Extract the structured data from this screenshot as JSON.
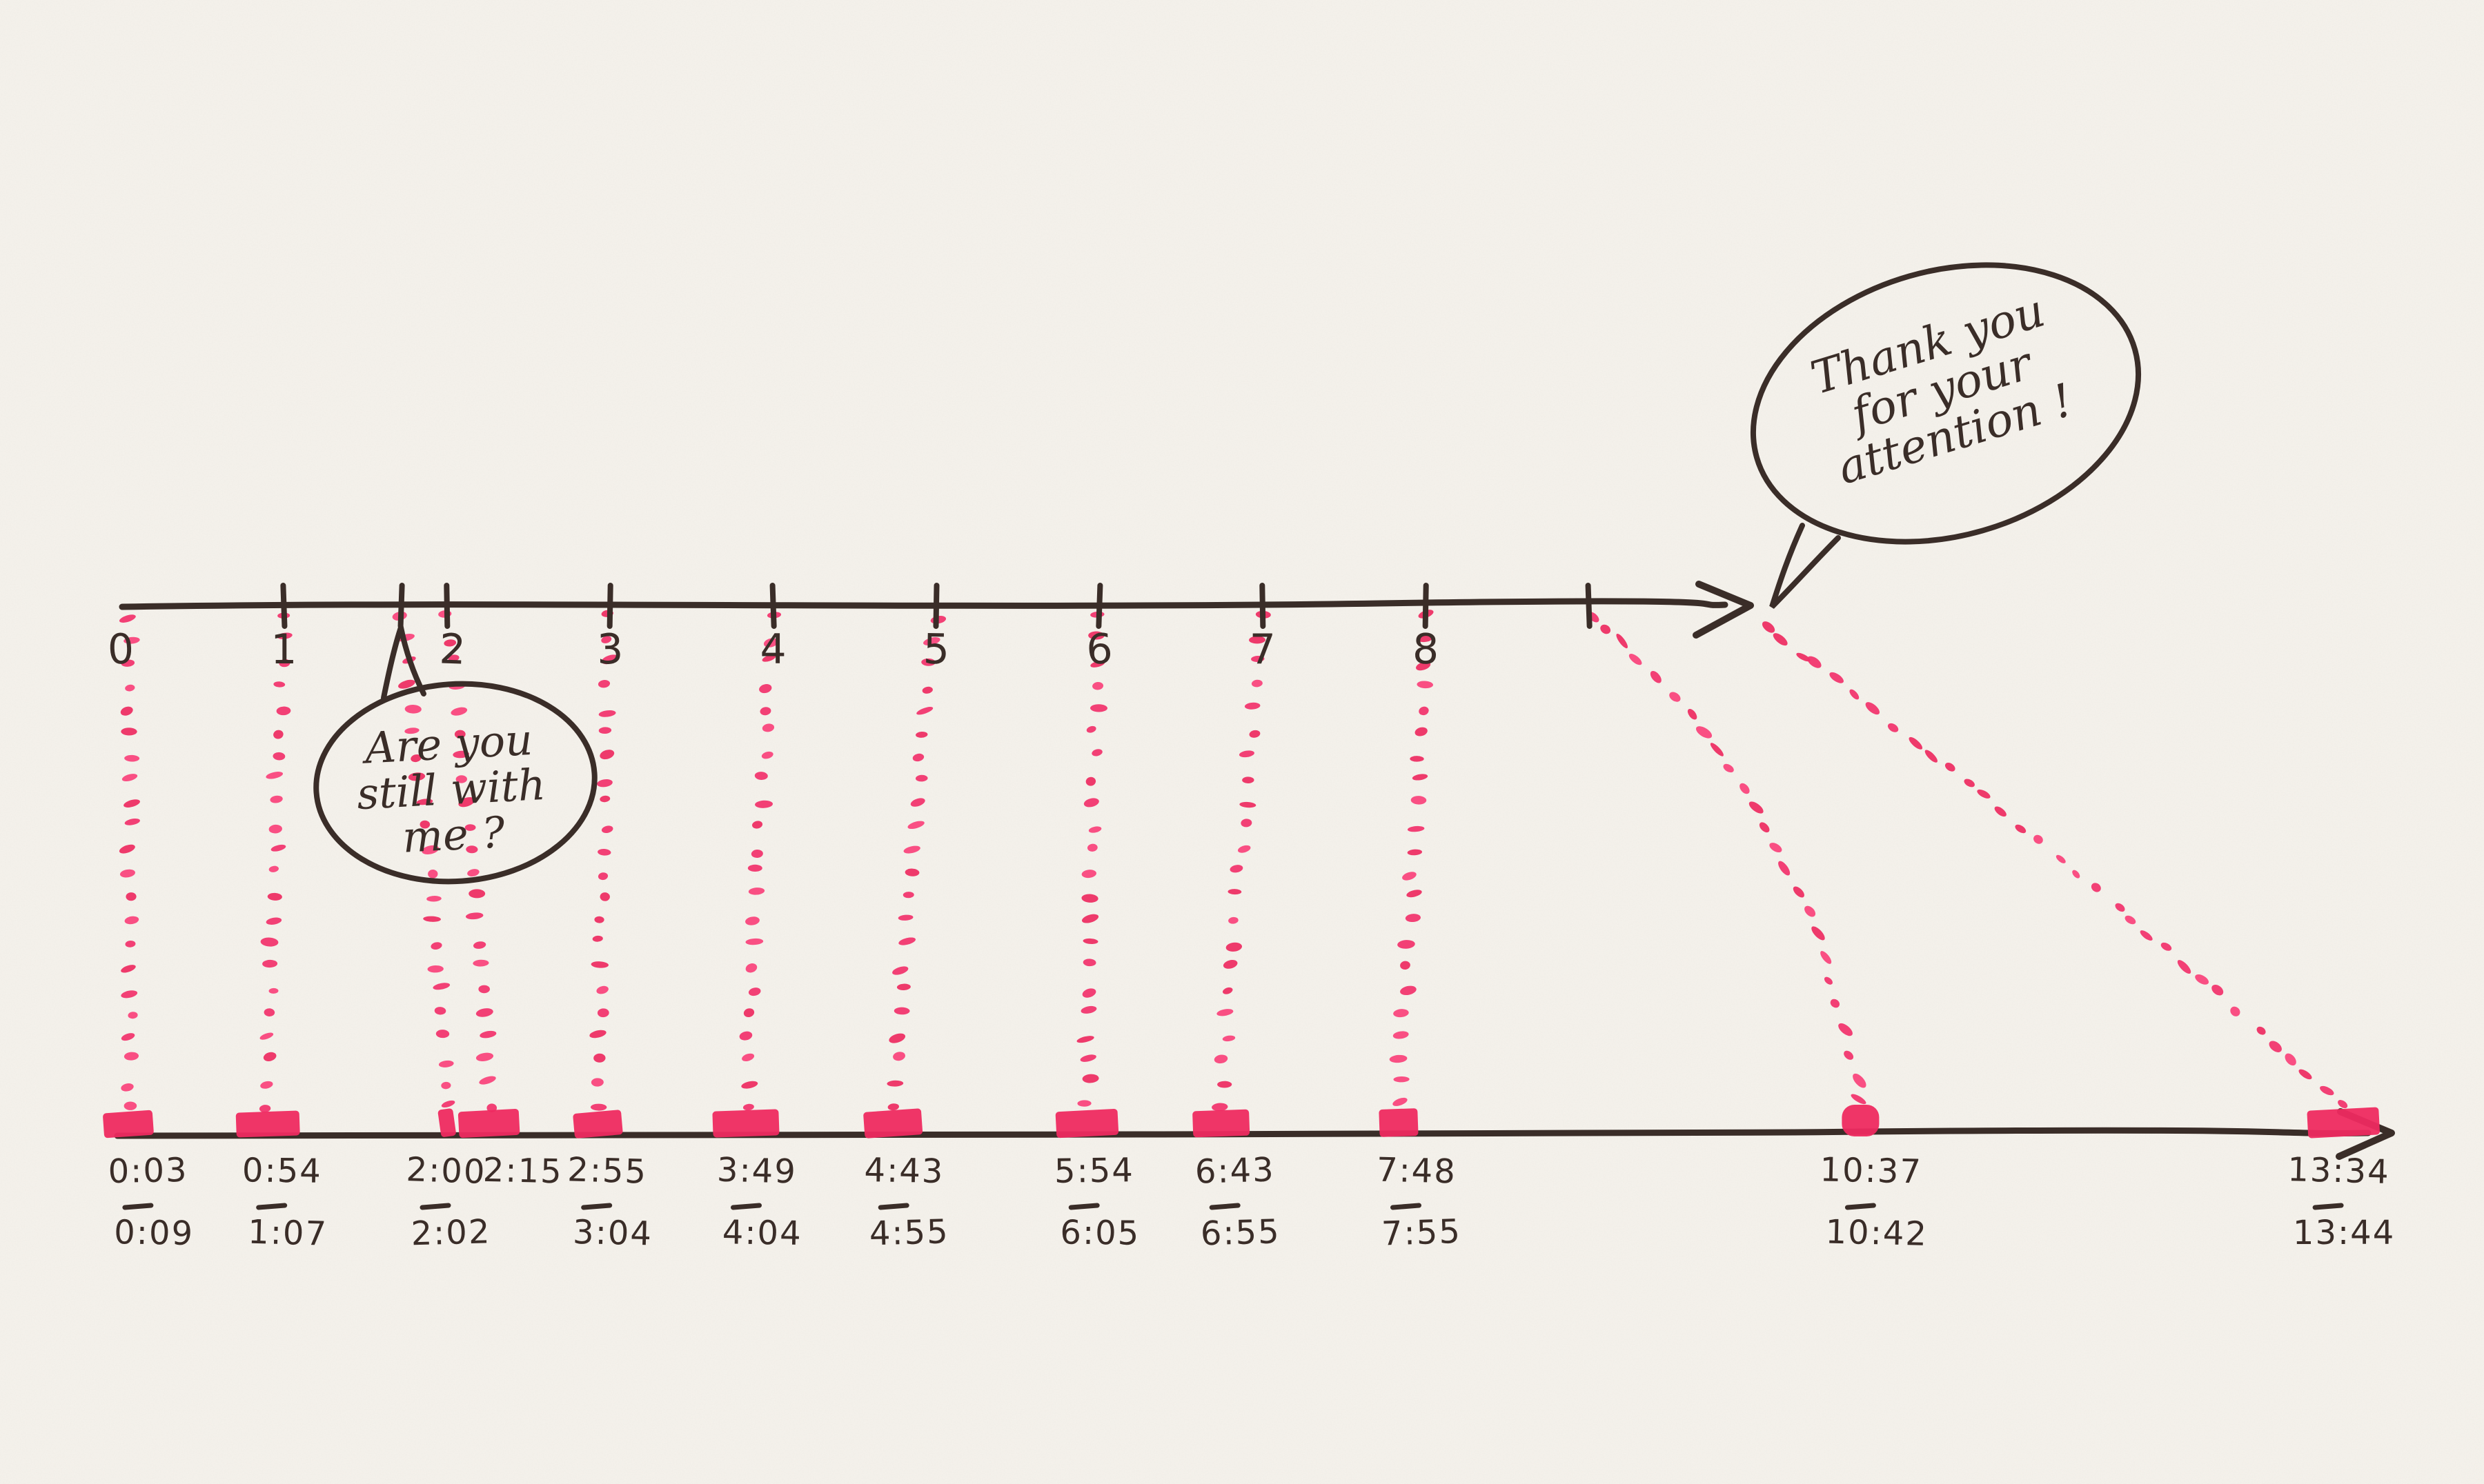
{
  "canvas": {
    "paper_color": "#f5f2ec",
    "ink_color": "#3a2d28",
    "marker_pink": "#f2316a",
    "marker_pink_bright": "#fa417a",
    "marker_pink_deep": "#ee2a60"
  },
  "chart_data": {
    "type": "scatter",
    "subtype": "hand-drawn mapping between planned slide/minute marks and actual elapsed presentation time",
    "title": "",
    "top_axis": {
      "orientation": "horizontal",
      "arrow_end": "right",
      "tick_labels": [
        "0",
        "1",
        "2",
        "3",
        "4",
        "5",
        "6",
        "7",
        "8"
      ],
      "extra_unlabeled_ticks": 2,
      "note": "one extra tick just left of 2 (second visit) and one unlabeled tick after 8"
    },
    "bottom_axis": {
      "orientation": "horizontal",
      "arrow_end": "right",
      "unit": "m:ss elapsed time"
    },
    "events": [
      {
        "slide": 0,
        "start": "0:03",
        "end": "0:09"
      },
      {
        "slide": 1,
        "start": "0:54",
        "end": "1:07"
      },
      {
        "slide": 2,
        "start": "2:00",
        "end": "2:02"
      },
      {
        "slide": 2,
        "start": "2:15",
        "end": null
      },
      {
        "slide": 3,
        "start": "2:55",
        "end": "3:04"
      },
      {
        "slide": 4,
        "start": "3:49",
        "end": "4:04"
      },
      {
        "slide": 5,
        "start": "4:43",
        "end": "4:55"
      },
      {
        "slide": 6,
        "start": "5:54",
        "end": "6:05"
      },
      {
        "slide": 7,
        "start": "6:43",
        "end": "6:55"
      },
      {
        "slide": 8,
        "start": "7:48",
        "end": "7:55"
      },
      {
        "slide": 9,
        "start": "10:37",
        "end": "10:42"
      },
      {
        "slide": 10,
        "start": "13:34",
        "end": "13:44"
      }
    ],
    "speech_bubbles": [
      {
        "id": "still-with-me",
        "lines": [
          "Are you",
          "still with",
          "me ?"
        ]
      },
      {
        "id": "thank-you",
        "lines": [
          "Thank you",
          "for your",
          "attention !"
        ]
      }
    ]
  }
}
